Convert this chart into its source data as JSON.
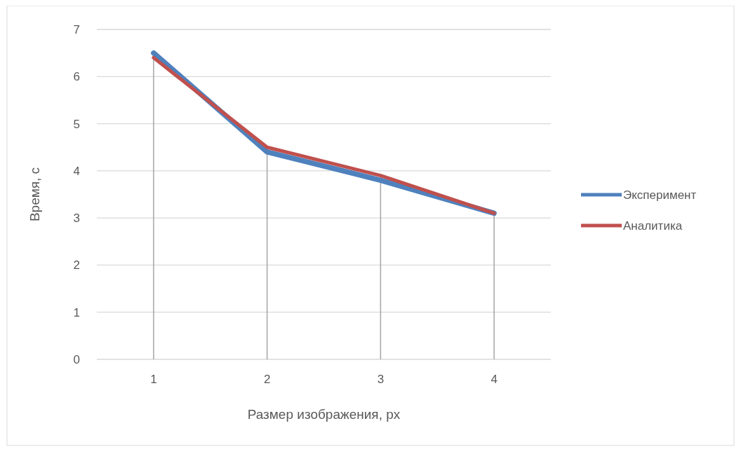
{
  "chart_data": {
    "type": "line",
    "xlabel": "Размер изображения, px",
    "ylabel": "Время, с",
    "x": [
      1,
      2,
      3,
      4
    ],
    "xlim": [
      0.5,
      4.5
    ],
    "xticks": [
      1,
      2,
      3,
      4
    ],
    "ylim": [
      0,
      7
    ],
    "yticks": [
      0,
      1,
      2,
      3,
      4,
      5,
      6,
      7
    ],
    "grid": "y",
    "legend": "right",
    "marker": "none",
    "line_style": "solid",
    "series": [
      {
        "name": "Эксперимент",
        "color": "#4f81bd",
        "values": [
          6.5,
          4.4,
          3.8,
          3.1
        ]
      },
      {
        "name": "Аналитика",
        "color": "#c0504d",
        "values": [
          6.4,
          4.5,
          3.9,
          3.1
        ]
      }
    ],
    "ref_lines": [
      {
        "axis": "x",
        "value": 1,
        "color": "#a5a5a5"
      },
      {
        "axis": "x",
        "value": 2,
        "color": "#a5a5a5"
      },
      {
        "axis": "x",
        "value": 3,
        "color": "#a5a5a5"
      },
      {
        "axis": "x",
        "value": 4,
        "color": "#a5a5a5"
      }
    ]
  }
}
